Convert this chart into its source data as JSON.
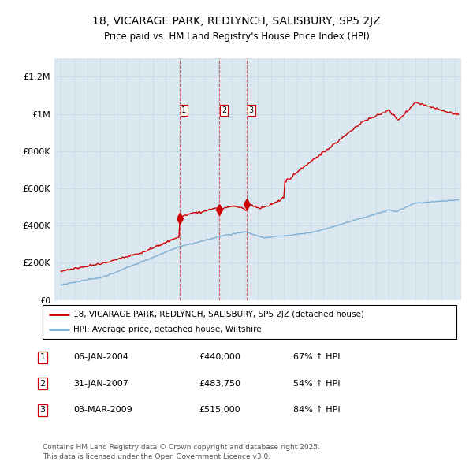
{
  "title": "18, VICARAGE PARK, REDLYNCH, SALISBURY, SP5 2JZ",
  "subtitle": "Price paid vs. HM Land Registry's House Price Index (HPI)",
  "legend_label_red": "18, VICARAGE PARK, REDLYNCH, SALISBURY, SP5 2JZ (detached house)",
  "legend_label_blue": "HPI: Average price, detached house, Wiltshire",
  "transactions": [
    {
      "num": 1,
      "date": "06-JAN-2004",
      "price": 440000,
      "pct": "67%",
      "dir": "↑",
      "year": 2004.04
    },
    {
      "num": 2,
      "date": "31-JAN-2007",
      "price": 483750,
      "pct": "54%",
      "dir": "↑",
      "year": 2007.08
    },
    {
      "num": 3,
      "date": "03-MAR-2009",
      "price": 515000,
      "pct": "84%",
      "dir": "↑",
      "year": 2009.17
    }
  ],
  "footer": "Contains HM Land Registry data © Crown copyright and database right 2025.\nThis data is licensed under the Open Government Licence v3.0.",
  "red_color": "#cc0000",
  "blue_color": "#7bafd4",
  "dashed_color": "#cc0000",
  "grid_color": "#c8d8e8",
  "plot_bg_color": "#dce8f0",
  "background_color": "#ffffff",
  "ylim": [
    0,
    1300000
  ],
  "xlim": [
    1994.5,
    2025.5
  ],
  "yticks": [
    0,
    200000,
    400000,
    600000,
    800000,
    1000000,
    1200000
  ],
  "ytick_labels": [
    "£0",
    "£200K",
    "£400K",
    "£600K",
    "£800K",
    "£1M",
    "£1.2M"
  ]
}
